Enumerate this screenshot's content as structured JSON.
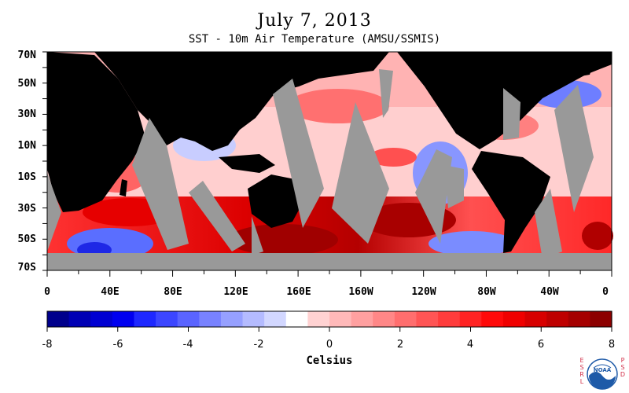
{
  "header": {
    "title": "July 7, 2013",
    "subtitle": "SST - 10m Air Temperature (AMSU/SSMIS)"
  },
  "map": {
    "lat_labels": [
      "70N",
      "50N",
      "30N",
      "10N",
      "10S",
      "30S",
      "50S",
      "70S"
    ],
    "lon_labels": [
      "0",
      "40E",
      "80E",
      "120E",
      "160E",
      "160W",
      "120W",
      "80W",
      "40W",
      "0"
    ],
    "colors": {
      "land": "#000000",
      "no_data": "#999999"
    }
  },
  "colorbar": {
    "labels": [
      "-8",
      "-6",
      "-4",
      "-2",
      "0",
      "2",
      "4",
      "6",
      "8"
    ],
    "unit": "Celsius",
    "colors": [
      "#00008c",
      "#0000b4",
      "#0000d2",
      "#0000f0",
      "#1e28ff",
      "#3c46ff",
      "#5a64ff",
      "#7882ff",
      "#96a0ff",
      "#b4bbff",
      "#d2d7ff",
      "#ffffff",
      "#ffd2d2",
      "#ffb9b9",
      "#ffa0a0",
      "#ff8787",
      "#ff6e6e",
      "#ff5555",
      "#ff3c3c",
      "#ff2323",
      "#ff0a0a",
      "#f00000",
      "#d70000",
      "#be0000",
      "#a50000",
      "#8c0000"
    ]
  },
  "logo": {
    "left_text": "ESRL",
    "right_text": "PSD",
    "center_text": "NOAA"
  }
}
